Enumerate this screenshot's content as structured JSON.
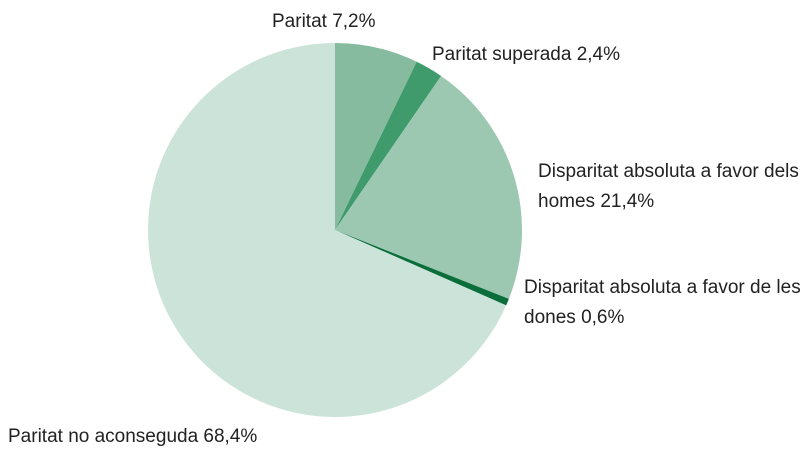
{
  "chart_data": {
    "type": "pie",
    "categories": [
      "Paritat",
      "Paritat superada",
      "Disparitat absoluta a favor dels homes",
      "Disparitat absoluta a favor de les dones",
      "Paritat no aconseguda"
    ],
    "values": [
      7.2,
      2.4,
      21.4,
      0.6,
      68.4
    ],
    "value_labels": [
      "7,2%",
      "2,4%",
      "21,4%",
      "0,6%",
      "68,4%"
    ],
    "colors": [
      "#86bba0",
      "#3f9a6c",
      "#9cc8b2",
      "#0a6e3a",
      "#cbe3d8"
    ]
  }
}
